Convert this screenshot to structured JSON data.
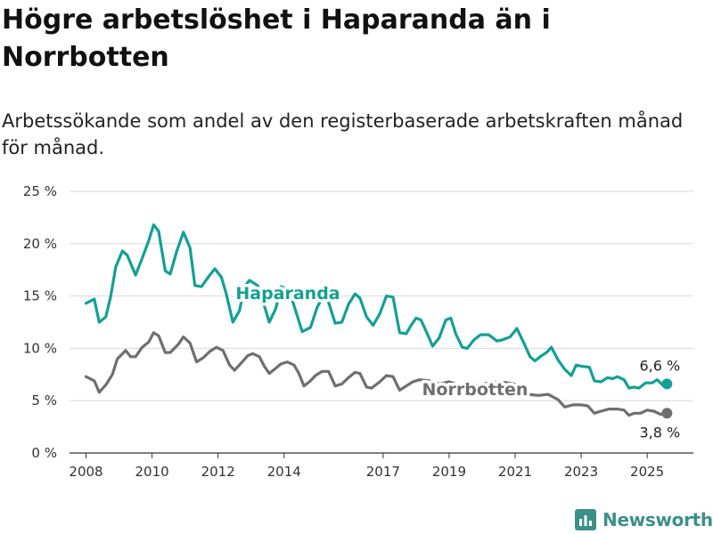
{
  "header": {
    "title": "Högre arbetslöshet i Haparanda än i Norrbotten",
    "subtitle": "Arbetssökande som andel av den registerbaserade arbetskraften månad för månad."
  },
  "chart_data": {
    "type": "line",
    "title": "Högre arbetslöshet i Haparanda än i Norrbotten",
    "subtitle": "Arbetssökande som andel av den registerbaserade arbetskraften månad för månad.",
    "xlabel": "",
    "ylabel": "",
    "ylim": [
      0,
      25
    ],
    "xlim": [
      2007.5,
      2026.4
    ],
    "y_ticks": [
      0,
      5,
      10,
      15,
      20,
      25
    ],
    "y_tick_labels": [
      "0 %",
      "5 %",
      "10 %",
      "15 %",
      "20 %",
      "25 %"
    ],
    "x_ticks": [
      2008,
      2010,
      2012,
      2014,
      2017,
      2019,
      2021,
      2023,
      2025
    ],
    "x_tick_labels": [
      "2008",
      "2010",
      "2012",
      "2014",
      "2017",
      "2019",
      "2021",
      "2023",
      "2025"
    ],
    "grid": "horizontal",
    "legend": "direct labels",
    "series": [
      {
        "name": "Haparanda",
        "color": "#13a094",
        "points": [
          [
            2008.0,
            14.3
          ],
          [
            2008.25,
            14.7
          ],
          [
            2008.4,
            12.5
          ],
          [
            2008.6,
            13.0
          ],
          [
            2008.75,
            15.0
          ],
          [
            2008.9,
            17.8
          ],
          [
            2009.1,
            19.3
          ],
          [
            2009.25,
            18.9
          ],
          [
            2009.5,
            17.0
          ],
          [
            2009.7,
            18.6
          ],
          [
            2009.9,
            20.3
          ],
          [
            2010.05,
            21.8
          ],
          [
            2010.2,
            21.2
          ],
          [
            2010.4,
            17.4
          ],
          [
            2010.55,
            17.1
          ],
          [
            2010.75,
            19.3
          ],
          [
            2010.95,
            21.1
          ],
          [
            2011.15,
            19.6
          ],
          [
            2011.3,
            16.0
          ],
          [
            2011.5,
            15.9
          ],
          [
            2011.75,
            17.0
          ],
          [
            2011.9,
            17.6
          ],
          [
            2012.1,
            16.8
          ],
          [
            2012.25,
            15.2
          ],
          [
            2012.45,
            12.5
          ],
          [
            2012.65,
            13.6
          ],
          [
            2012.8,
            15.9
          ],
          [
            2012.95,
            16.5
          ],
          [
            2013.2,
            16.0
          ],
          [
            2013.35,
            14.6
          ],
          [
            2013.55,
            12.5
          ],
          [
            2013.75,
            13.8
          ],
          [
            2013.9,
            15.9
          ],
          [
            2014.15,
            15.6
          ],
          [
            2014.35,
            13.6
          ],
          [
            2014.55,
            11.6
          ],
          [
            2014.8,
            12.0
          ],
          [
            2015.0,
            13.9
          ],
          [
            2015.2,
            15.1
          ],
          [
            2015.35,
            14.4
          ],
          [
            2015.55,
            12.4
          ],
          [
            2015.75,
            12.5
          ],
          [
            2015.95,
            14.2
          ],
          [
            2016.15,
            15.2
          ],
          [
            2016.3,
            14.8
          ],
          [
            2016.5,
            13.0
          ],
          [
            2016.7,
            12.2
          ],
          [
            2016.9,
            13.3
          ],
          [
            2017.1,
            15.0
          ],
          [
            2017.3,
            14.9
          ],
          [
            2017.5,
            11.5
          ],
          [
            2017.7,
            11.4
          ],
          [
            2017.85,
            12.2
          ],
          [
            2018.0,
            12.9
          ],
          [
            2018.15,
            12.7
          ],
          [
            2018.35,
            11.3
          ],
          [
            2018.5,
            10.2
          ],
          [
            2018.7,
            11.0
          ],
          [
            2018.9,
            12.7
          ],
          [
            2019.05,
            12.9
          ],
          [
            2019.2,
            11.4
          ],
          [
            2019.4,
            10.1
          ],
          [
            2019.55,
            10.0
          ],
          [
            2019.75,
            10.8
          ],
          [
            2019.95,
            11.3
          ],
          [
            2020.2,
            11.3
          ],
          [
            2020.45,
            10.7
          ],
          [
            2020.6,
            10.8
          ],
          [
            2020.85,
            11.1
          ],
          [
            2021.05,
            11.9
          ],
          [
            2021.25,
            10.6
          ],
          [
            2021.45,
            9.2
          ],
          [
            2021.6,
            8.8
          ],
          [
            2021.8,
            9.3
          ],
          [
            2021.95,
            9.6
          ],
          [
            2022.1,
            10.1
          ],
          [
            2022.3,
            8.9
          ],
          [
            2022.5,
            8.0
          ],
          [
            2022.7,
            7.4
          ],
          [
            2022.85,
            8.4
          ],
          [
            2023.0,
            8.3
          ],
          [
            2023.25,
            8.2
          ],
          [
            2023.4,
            6.9
          ],
          [
            2023.6,
            6.8
          ],
          [
            2023.8,
            7.2
          ],
          [
            2023.95,
            7.1
          ],
          [
            2024.1,
            7.3
          ],
          [
            2024.3,
            7.0
          ],
          [
            2024.45,
            6.2
          ],
          [
            2024.6,
            6.3
          ],
          [
            2024.75,
            6.2
          ],
          [
            2024.95,
            6.7
          ],
          [
            2025.15,
            6.7
          ],
          [
            2025.3,
            7.0
          ],
          [
            2025.5,
            6.4
          ],
          [
            2025.6,
            6.6
          ]
        ],
        "end_value": 6.6,
        "end_label": "6,6 %"
      },
      {
        "name": "Norrbotten",
        "color": "#6f6f72",
        "points": [
          [
            2008.0,
            7.3
          ],
          [
            2008.25,
            6.9
          ],
          [
            2008.4,
            5.8
          ],
          [
            2008.6,
            6.5
          ],
          [
            2008.8,
            7.5
          ],
          [
            2008.95,
            9.0
          ],
          [
            2009.2,
            9.8
          ],
          [
            2009.35,
            9.2
          ],
          [
            2009.5,
            9.2
          ],
          [
            2009.7,
            10.1
          ],
          [
            2009.9,
            10.6
          ],
          [
            2010.05,
            11.5
          ],
          [
            2010.2,
            11.2
          ],
          [
            2010.4,
            9.6
          ],
          [
            2010.55,
            9.6
          ],
          [
            2010.8,
            10.4
          ],
          [
            2010.95,
            11.1
          ],
          [
            2011.15,
            10.5
          ],
          [
            2011.35,
            8.7
          ],
          [
            2011.55,
            9.1
          ],
          [
            2011.75,
            9.7
          ],
          [
            2011.95,
            10.1
          ],
          [
            2012.15,
            9.8
          ],
          [
            2012.35,
            8.4
          ],
          [
            2012.5,
            7.9
          ],
          [
            2012.7,
            8.6
          ],
          [
            2012.9,
            9.3
          ],
          [
            2013.05,
            9.5
          ],
          [
            2013.25,
            9.2
          ],
          [
            2013.4,
            8.3
          ],
          [
            2013.55,
            7.6
          ],
          [
            2013.75,
            8.1
          ],
          [
            2013.9,
            8.5
          ],
          [
            2014.1,
            8.7
          ],
          [
            2014.3,
            8.4
          ],
          [
            2014.45,
            7.6
          ],
          [
            2014.6,
            6.4
          ],
          [
            2014.8,
            6.9
          ],
          [
            2014.95,
            7.4
          ],
          [
            2015.15,
            7.8
          ],
          [
            2015.35,
            7.8
          ],
          [
            2015.55,
            6.4
          ],
          [
            2015.75,
            6.6
          ],
          [
            2015.95,
            7.2
          ],
          [
            2016.15,
            7.7
          ],
          [
            2016.3,
            7.6
          ],
          [
            2016.5,
            6.3
          ],
          [
            2016.65,
            6.2
          ],
          [
            2016.9,
            6.8
          ],
          [
            2017.1,
            7.4
          ],
          [
            2017.3,
            7.3
          ],
          [
            2017.5,
            6.0
          ],
          [
            2017.7,
            6.4
          ],
          [
            2017.9,
            6.8
          ],
          [
            2018.1,
            7.0
          ],
          [
            2018.4,
            6.9
          ],
          [
            2018.7,
            6.6
          ],
          [
            2019.0,
            6.8
          ],
          [
            2019.3,
            6.5
          ],
          [
            2019.6,
            6.3
          ],
          [
            2019.9,
            6.5
          ],
          [
            2020.2,
            6.7
          ],
          [
            2020.5,
            6.8
          ],
          [
            2020.8,
            6.7
          ],
          [
            2021.1,
            6.5
          ],
          [
            2021.4,
            5.6
          ],
          [
            2021.7,
            5.5
          ],
          [
            2022.0,
            5.6
          ],
          [
            2022.3,
            5.1
          ],
          [
            2022.5,
            4.4
          ],
          [
            2022.75,
            4.6
          ],
          [
            2023.0,
            4.6
          ],
          [
            2023.2,
            4.5
          ],
          [
            2023.4,
            3.8
          ],
          [
            2023.6,
            4.0
          ],
          [
            2023.85,
            4.2
          ],
          [
            2024.1,
            4.2
          ],
          [
            2024.3,
            4.1
          ],
          [
            2024.45,
            3.6
          ],
          [
            2024.6,
            3.8
          ],
          [
            2024.8,
            3.8
          ],
          [
            2025.0,
            4.1
          ],
          [
            2025.2,
            4.0
          ],
          [
            2025.4,
            3.7
          ],
          [
            2025.6,
            3.8
          ]
        ],
        "end_value": 3.8,
        "end_label": "3,8 %"
      }
    ]
  },
  "brand": {
    "name": "Newsworthy"
  }
}
